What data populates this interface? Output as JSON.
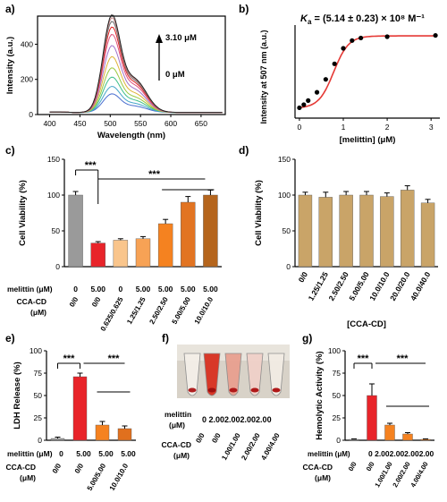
{
  "colors": {
    "gray": "#9a9a9a",
    "red": "#e8242a",
    "peach": "#f9c58c",
    "lightorange": "#f7a255",
    "orange": "#f58220",
    "darkorange": "#d2691e",
    "brown": "#b5651d",
    "tan": "#c9a468",
    "fit": "#e53935"
  },
  "chart_data": [
    {
      "panel": "a)",
      "type": "line",
      "xlabel": "Wavelength (nm)",
      "ylabel": "Intensity (a.u.)",
      "xlim": [
        380,
        690
      ],
      "ylim": [
        0,
        560
      ],
      "xticks": [
        400,
        450,
        500,
        550,
        600,
        650
      ],
      "yticks": [
        0,
        200,
        400
      ],
      "annotation_top": "3.10 μM",
      "annotation_bottom": "0 μM",
      "series": [
        {
          "color": "#4a6fd0",
          "peak": 100
        },
        {
          "color": "#46a6c9",
          "peak": 140
        },
        {
          "color": "#3fbf8a",
          "peak": 190
        },
        {
          "color": "#9ac93f",
          "peak": 240
        },
        {
          "color": "#e0b43a",
          "peak": 300
        },
        {
          "color": "#a070c8",
          "peak": 360
        },
        {
          "color": "#e0507a",
          "peak": 420
        },
        {
          "color": "#e02020",
          "peak": 460
        },
        {
          "color": "#707070",
          "peak": 490
        },
        {
          "color": "#c08080",
          "peak": 510
        },
        {
          "color": "#202020",
          "peak": 525
        }
      ]
    },
    {
      "panel": "b)",
      "type": "scatter",
      "equation_k": "K",
      "equation_sub": "a",
      "equation_rest": " = (5.14 ± 0.23) × 10⁸ M⁻¹",
      "xlabel": "[melittin] (μM)",
      "ylabel": "Intensity at 507 nm (a.u.)",
      "xlim": [
        -0.1,
        3.2
      ],
      "ylim": [
        200,
        560
      ],
      "xticks": [
        0,
        1,
        2,
        3
      ],
      "x": [
        0,
        0.1,
        0.2,
        0.4,
        0.6,
        0.8,
        1.0,
        1.2,
        1.4,
        2.0,
        3.1
      ],
      "y": [
        240,
        252,
        268,
        300,
        350,
        410,
        470,
        500,
        510,
        515,
        520
      ]
    },
    {
      "panel": "c)",
      "type": "bar",
      "ylabel": "Cell Viability (%)",
      "ylim": [
        0,
        150
      ],
      "yticks": [
        0,
        50,
        100,
        150
      ],
      "row1_label": "melittin (μM)",
      "row2_label_a": "CCA-CD",
      "row2_label_b": "(μM)",
      "melittin": [
        "0",
        "5.00",
        "0",
        "5.00",
        "5.00",
        "5.00",
        "5.00"
      ],
      "cca": [
        "0/0",
        "0/0",
        "0.625/0.625",
        "1.25/1.25",
        "2.50/2.50",
        "5.00/5.00",
        "10.0/10.0"
      ],
      "values": [
        100,
        33,
        37,
        39,
        60,
        90,
        100
      ],
      "errors": [
        5,
        2,
        2,
        3,
        6,
        8,
        7
      ],
      "colors": [
        "#9a9a9a",
        "#e8242a",
        "#f9c58c",
        "#f7a255",
        "#f58220",
        "#e27422",
        "#b5651d"
      ],
      "sig1": "***",
      "sig2": "***"
    },
    {
      "panel": "d)",
      "type": "bar",
      "ylabel": "Cell Viability (%)",
      "xlabel": "[CCA-CD]",
      "ylim": [
        0,
        150
      ],
      "yticks": [
        0,
        50,
        100,
        150
      ],
      "categories": [
        "0/0",
        "1.25/1.25",
        "2.50/2.50",
        "5.00/5.00",
        "10.0/10.0",
        "20.0/20.0",
        "40.0/40.0"
      ],
      "values": [
        100,
        97,
        100,
        100,
        98,
        107,
        89
      ],
      "errors": [
        4,
        7,
        5,
        5,
        5,
        6,
        5
      ],
      "color": "#c9a468"
    },
    {
      "panel": "e)",
      "type": "bar",
      "ylabel": "LDH Release (%)",
      "ylim": [
        0,
        100
      ],
      "yticks": [
        0,
        25,
        50,
        75,
        100
      ],
      "row1_label": "melittin (μM)",
      "row2_label_a": "CCA-CD",
      "row2_label_b": "(μM)",
      "melittin": [
        "0",
        "5.00",
        "5.00",
        "5.00"
      ],
      "cca": [
        "0/0",
        "0/0",
        "5.00/5.00",
        "10.0/10.0"
      ],
      "values": [
        2,
        71,
        17,
        13
      ],
      "errors": [
        1.5,
        4,
        4,
        3
      ],
      "colors": [
        "#9a9a9a",
        "#e8242a",
        "#f58220",
        "#e0701e"
      ],
      "sig1": "***",
      "sig2": "***"
    },
    {
      "panel": "f)",
      "type": "table",
      "row1_label_a": "melittin",
      "row1_label_b": "(μM)",
      "melittin_text": "0  2.002.002.002.00",
      "row2_label_a": "CCA-CD",
      "row2_label_b": "(μM)",
      "cca": [
        "0/0",
        "0/0",
        "1.00/1.00",
        "2.00/2.00",
        "4.00/4.00"
      ]
    },
    {
      "panel": "g)",
      "type": "bar",
      "ylabel": "Hemolytic Activity (%)",
      "ylim": [
        0,
        100
      ],
      "yticks": [
        0,
        25,
        50,
        75,
        100
      ],
      "row1_label": "melittin (μM)",
      "melittin_text": "0  2.002.002.002.00",
      "row2_label_a": "CCA-CD",
      "row2_label_b": "(μM)",
      "cca": [
        "0/0",
        "0/0",
        "1.00/1.00",
        "2.00/2.00",
        "4.00/4.00"
      ],
      "values": [
        1,
        50,
        17,
        7,
        1
      ],
      "errors": [
        0.5,
        13,
        2,
        1.5,
        0.5
      ],
      "colors": [
        "#9a9a9a",
        "#e8242a",
        "#f58220",
        "#f58220",
        "#f58220"
      ],
      "sig1": "***",
      "sig2": "***"
    }
  ]
}
